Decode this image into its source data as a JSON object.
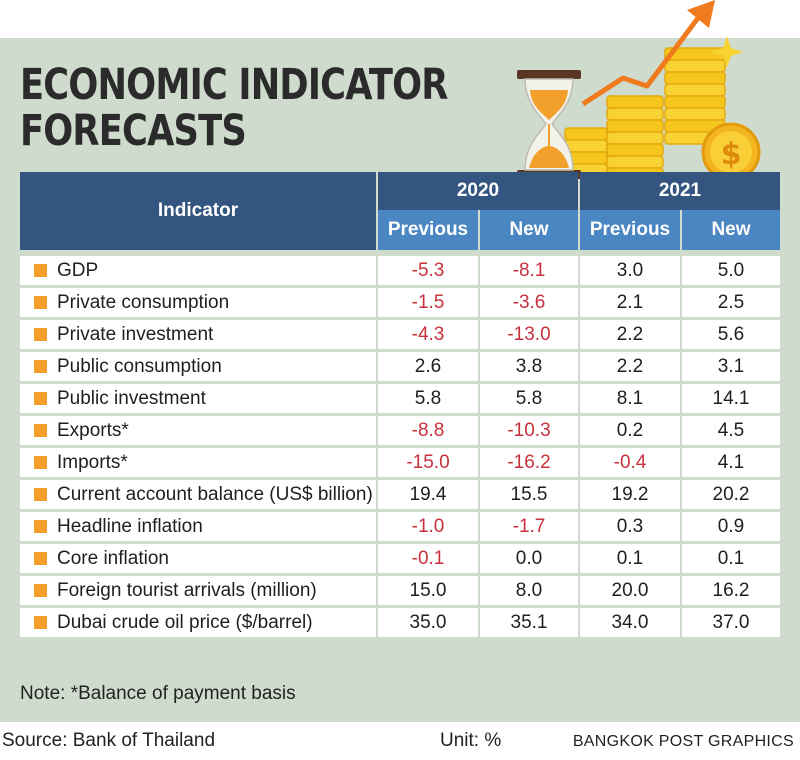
{
  "title_line1": "ECONOMIC INDICATOR",
  "title_line2": "FORECASTS",
  "header": {
    "indicator": "Indicator",
    "years": [
      "2020",
      "2021"
    ],
    "sub": [
      "Previous",
      "New",
      "Previous",
      "New"
    ]
  },
  "rows": [
    {
      "label": "GDP",
      "values": [
        "-5.3",
        "-8.1",
        "3.0",
        "5.0"
      ]
    },
    {
      "label": "Private consumption",
      "values": [
        "-1.5",
        "-3.6",
        "2.1",
        "2.5"
      ]
    },
    {
      "label": "Private investment",
      "values": [
        "-4.3",
        "-13.0",
        "2.2",
        "5.6"
      ]
    },
    {
      "label": "Public consumption",
      "values": [
        "2.6",
        "3.8",
        "2.2",
        "3.1"
      ]
    },
    {
      "label": "Public investment",
      "values": [
        "5.8",
        "5.8",
        "8.1",
        "14.1"
      ]
    },
    {
      "label": "Exports*",
      "values": [
        "-8.8",
        "-10.3",
        "0.2",
        "4.5"
      ]
    },
    {
      "label": "Imports*",
      "values": [
        "-15.0",
        "-16.2",
        "-0.4",
        "4.1"
      ]
    },
    {
      "label": "Current account balance (US$ billion)",
      "values": [
        "19.4",
        "15.5",
        "19.2",
        "20.2"
      ]
    },
    {
      "label": "Headline inflation",
      "values": [
        "-1.0",
        "-1.7",
        "0.3",
        "0.9"
      ]
    },
    {
      "label": "Core inflation",
      "values": [
        "-0.1",
        "0.0",
        "0.1",
        "0.1"
      ]
    },
    {
      "label": "Foreign tourist arrivals (million)",
      "values": [
        "15.0",
        "8.0",
        "20.0",
        "16.2"
      ]
    },
    {
      "label": "Dubai crude oil price ($/barrel)",
      "values": [
        "35.0",
        "35.1",
        "34.0",
        "37.0"
      ]
    }
  ],
  "note": "Note: *Balance of payment basis",
  "source": "Source: Bank of Thailand",
  "unit": "Unit: %",
  "credit": "BANGKOK POST GRAPHICS",
  "colors": {
    "panel": "#cfdccd",
    "header_dark": "#33557f",
    "header_light": "#4a86c2",
    "bullet": "#f29f2c",
    "negative": "#c8303c"
  },
  "chart_data": {
    "type": "table",
    "title": "ECONOMIC INDICATOR FORECASTS",
    "columns": [
      "Indicator",
      "2020 Previous",
      "2020 New",
      "2021 Previous",
      "2021 New"
    ],
    "unit": "Unit: %",
    "rows": [
      [
        "GDP",
        -5.3,
        -8.1,
        3.0,
        5.0
      ],
      [
        "Private consumption",
        -1.5,
        -3.6,
        2.1,
        2.5
      ],
      [
        "Private investment",
        -4.3,
        -13.0,
        2.2,
        5.6
      ],
      [
        "Public consumption",
        2.6,
        3.8,
        2.2,
        3.1
      ],
      [
        "Public investment",
        5.8,
        5.8,
        8.1,
        14.1
      ],
      [
        "Exports*",
        -8.8,
        -10.3,
        0.2,
        4.5
      ],
      [
        "Imports*",
        -15.0,
        -16.2,
        -0.4,
        4.1
      ],
      [
        "Current account balance (US$ billion)",
        19.4,
        15.5,
        19.2,
        20.2
      ],
      [
        "Headline inflation",
        -1.0,
        -1.7,
        0.3,
        0.9
      ],
      [
        "Core inflation",
        -0.1,
        0.0,
        0.1,
        0.1
      ],
      [
        "Foreign tourist arrivals (million)",
        15.0,
        8.0,
        20.0,
        16.2
      ],
      [
        "Dubai crude oil price ($/barrel)",
        35.0,
        35.1,
        34.0,
        37.0
      ]
    ]
  }
}
